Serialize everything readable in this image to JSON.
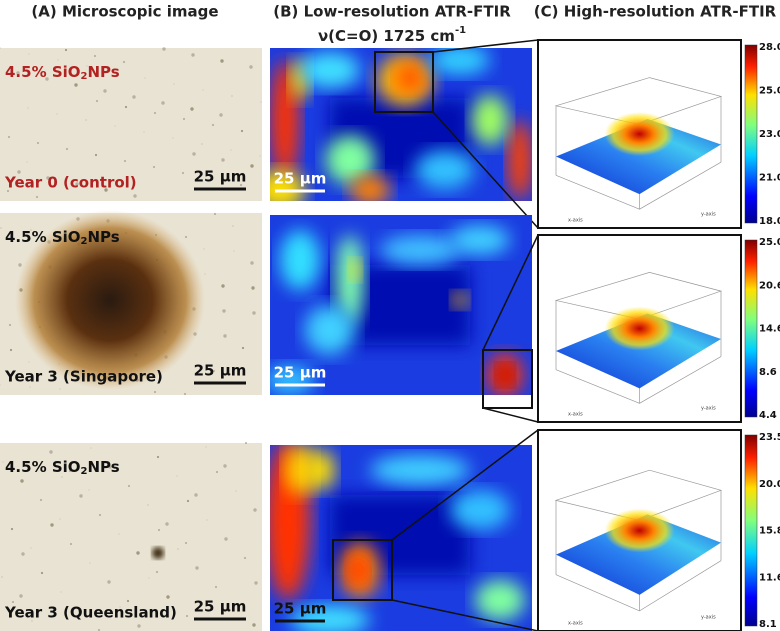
{
  "headers": {
    "a": "(A) Microscopic image",
    "b_line1": "(B) Low-resolution ATR-FTIR",
    "b_line2": {
      "pre": "ν(C=O) 1725 cm",
      "sup": "-1"
    },
    "c": "(C) High-resolution ATR-FTIR"
  },
  "rows": [
    {
      "sample": {
        "pre": "4.5% SiO",
        "sub": "2",
        "post": "NPs"
      },
      "condition": "Year 0 (control)",
      "scale_a": "25 μm",
      "scale_b": "25 μm",
      "colorbar": [
        "28.0",
        "25.0",
        "23.0",
        "21.0",
        "18.0"
      ]
    },
    {
      "sample": {
        "pre": "4.5% SiO",
        "sub": "2",
        "post": "NPs"
      },
      "condition": "Year 3 (Singapore)",
      "scale_a": "25 μm",
      "scale_b": "25 μm",
      "colorbar": [
        "25.0",
        "20.6",
        "14.6",
        "8.6",
        "4.4"
      ]
    },
    {
      "sample": {
        "pre": "4.5% SiO",
        "sub": "2",
        "post": "NPs"
      },
      "condition": "Year 3 (Queensland)",
      "scale_a": "25 μm",
      "scale_b": "25 μm",
      "colorbar": [
        "23.5",
        "20.0",
        "15.8",
        "11.6",
        "8.1"
      ]
    }
  ],
  "axis_labels": {
    "x": "x-axis",
    "y": "y-axis"
  }
}
